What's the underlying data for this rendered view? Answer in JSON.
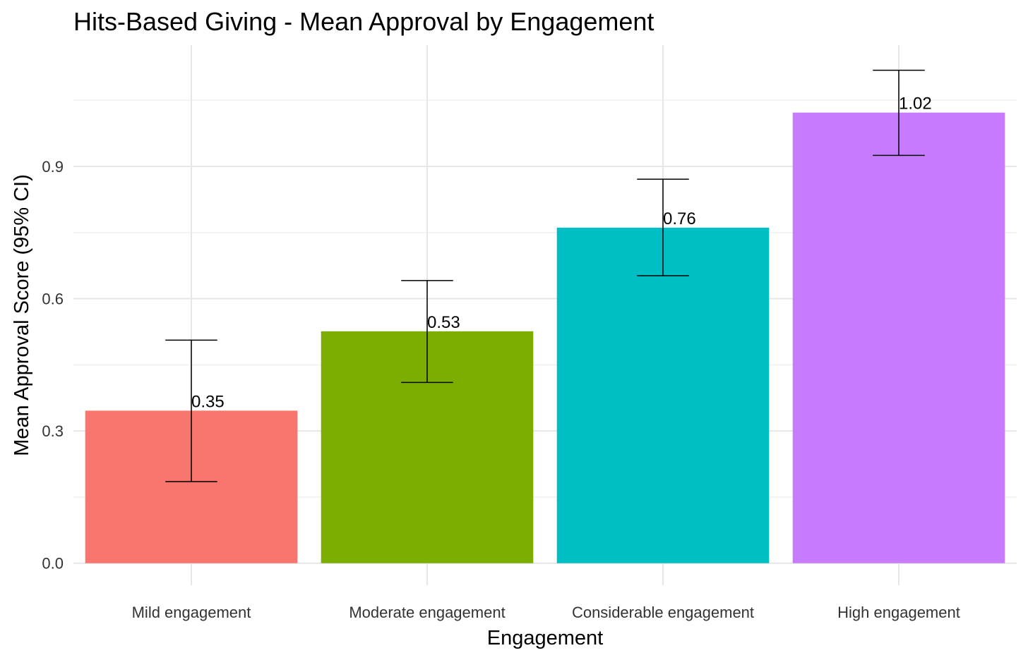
{
  "chart_data": {
    "type": "bar",
    "title": "Hits-Based Giving - Mean Approval by Engagement",
    "xlabel": "Engagement",
    "ylabel": "Mean Approval Score (95% CI)",
    "categories": [
      "Mild engagement",
      "Moderate engagement",
      "Considerable engagement",
      "High engagement"
    ],
    "values": [
      0.346,
      0.526,
      0.761,
      1.022
    ],
    "value_labels": [
      "0.35",
      "0.53",
      "0.76",
      "1.02"
    ],
    "ci_lower": [
      0.185,
      0.41,
      0.652,
      0.925
    ],
    "ci_upper": [
      0.506,
      0.641,
      0.871,
      1.118
    ],
    "colors": [
      "#F8766D",
      "#7CAE00",
      "#00BFC4",
      "#C77CFF"
    ],
    "y_ticks": [
      0.0,
      0.3,
      0.6,
      0.9
    ],
    "y_tick_labels": [
      "0.0",
      "0.3",
      "0.6",
      "0.9"
    ],
    "ylim": [
      -0.05,
      1.175
    ],
    "grid": true,
    "legend": "none"
  }
}
